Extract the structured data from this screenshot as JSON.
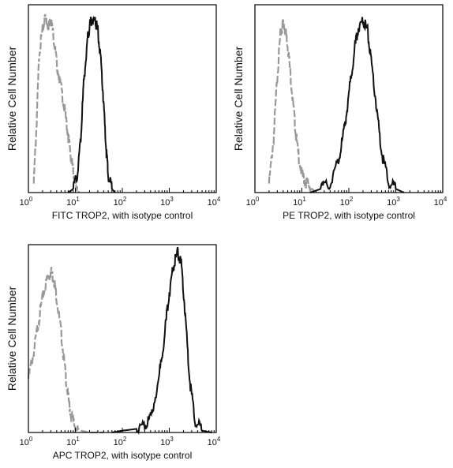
{
  "chart_data": [
    {
      "type": "line",
      "xscale": "log",
      "xlim": [
        1,
        10000
      ],
      "ylim": [
        0,
        1
      ],
      "xlabel": "FITC  TROP2,  with isotype control",
      "ylabel": "Relative Cell Number",
      "tick_labels": [
        {
          "base": "10",
          "exp": "0"
        },
        {
          "base": "10",
          "exp": "1"
        },
        {
          "base": "10",
          "exp": "2"
        },
        {
          "base": "10",
          "exp": "3"
        },
        {
          "base": "10",
          "exp": "4"
        }
      ],
      "series": [
        {
          "color": "#999999",
          "style": "dashed",
          "x": [
            1.3,
            1.5,
            1.7,
            2.0,
            2.3,
            2.7,
            3.0,
            3.5,
            4.0,
            5.0,
            6.0,
            7.0,
            8.0,
            9.0,
            10.0,
            11.0,
            12.0
          ],
          "y": [
            0.05,
            0.4,
            0.78,
            0.9,
            0.98,
            0.92,
            0.97,
            0.85,
            0.72,
            0.58,
            0.45,
            0.32,
            0.2,
            0.12,
            0.05,
            0.02,
            0.0
          ]
        },
        {
          "color": "#111111",
          "style": "solid",
          "x": [
            7,
            9,
            11,
            13,
            15,
            18,
            20,
            23,
            27,
            30,
            35,
            40,
            45,
            50,
            60,
            70
          ],
          "y": [
            0.0,
            0.02,
            0.1,
            0.3,
            0.6,
            0.85,
            0.92,
            0.97,
            0.95,
            0.9,
            0.72,
            0.5,
            0.25,
            0.1,
            0.02,
            0.0
          ]
        }
      ]
    },
    {
      "type": "line",
      "xscale": "log",
      "xlim": [
        1,
        10000
      ],
      "ylim": [
        0,
        1
      ],
      "xlabel": "PE  TROP2,  with isotype control",
      "ylabel": "Relative Cell Number",
      "tick_labels": [
        {
          "base": "10",
          "exp": "0"
        },
        {
          "base": "10",
          "exp": "1"
        },
        {
          "base": "10",
          "exp": "2"
        },
        {
          "base": "10",
          "exp": "3"
        },
        {
          "base": "10",
          "exp": "4"
        }
      ],
      "series": [
        {
          "color": "#999999",
          "style": "dashed",
          "x": [
            2.0,
            2.5,
            3.0,
            3.5,
            4.0,
            4.5,
            5.0,
            6.0,
            7.0,
            8.0,
            10.0,
            12.0,
            15.0,
            20.0
          ],
          "y": [
            0.05,
            0.3,
            0.65,
            0.88,
            0.95,
            0.9,
            0.82,
            0.6,
            0.4,
            0.25,
            0.1,
            0.06,
            0.03,
            0.0
          ]
        },
        {
          "color": "#111111",
          "style": "solid",
          "x": [
            15,
            25,
            40,
            60,
            80,
            100,
            130,
            160,
            200,
            250,
            300,
            400,
            500,
            700,
            1000,
            1500
          ],
          "y": [
            0.0,
            0.02,
            0.05,
            0.18,
            0.35,
            0.55,
            0.78,
            0.92,
            0.96,
            0.9,
            0.72,
            0.45,
            0.22,
            0.06,
            0.02,
            0.0
          ]
        }
      ]
    },
    {
      "type": "line",
      "xscale": "log",
      "xlim": [
        1,
        10000
      ],
      "ylim": [
        0,
        1
      ],
      "xlabel": "APC TROP2, with isotype control",
      "ylabel": "Relative Cell Number",
      "tick_labels": [
        {
          "base": "10",
          "exp": "0"
        },
        {
          "base": "10",
          "exp": "1"
        },
        {
          "base": "10",
          "exp": "2"
        },
        {
          "base": "10",
          "exp": "3"
        },
        {
          "base": "10",
          "exp": "4"
        }
      ],
      "series": [
        {
          "color": "#999999",
          "style": "dashed",
          "x": [
            1.0,
            1.3,
            1.6,
            2.0,
            2.5,
            3.0,
            3.5,
            4.0,
            5.0,
            6.0,
            7.0,
            8.0,
            10.0,
            13.0,
            20.0,
            40.0
          ],
          "y": [
            0.3,
            0.45,
            0.6,
            0.75,
            0.85,
            0.9,
            0.85,
            0.75,
            0.55,
            0.35,
            0.2,
            0.1,
            0.03,
            0.01,
            0.0,
            0.0
          ]
        },
        {
          "color": "#111111",
          "style": "solid",
          "x": [
            60,
            100,
            200,
            300,
            400,
            600,
            800,
            1000,
            1200,
            1500,
            1800,
            2200,
            2700,
            3500,
            5000,
            8000
          ],
          "y": [
            0.0,
            0.01,
            0.02,
            0.04,
            0.08,
            0.3,
            0.55,
            0.78,
            0.92,
            1.0,
            0.93,
            0.65,
            0.3,
            0.07,
            0.01,
            0.0
          ]
        }
      ]
    }
  ]
}
